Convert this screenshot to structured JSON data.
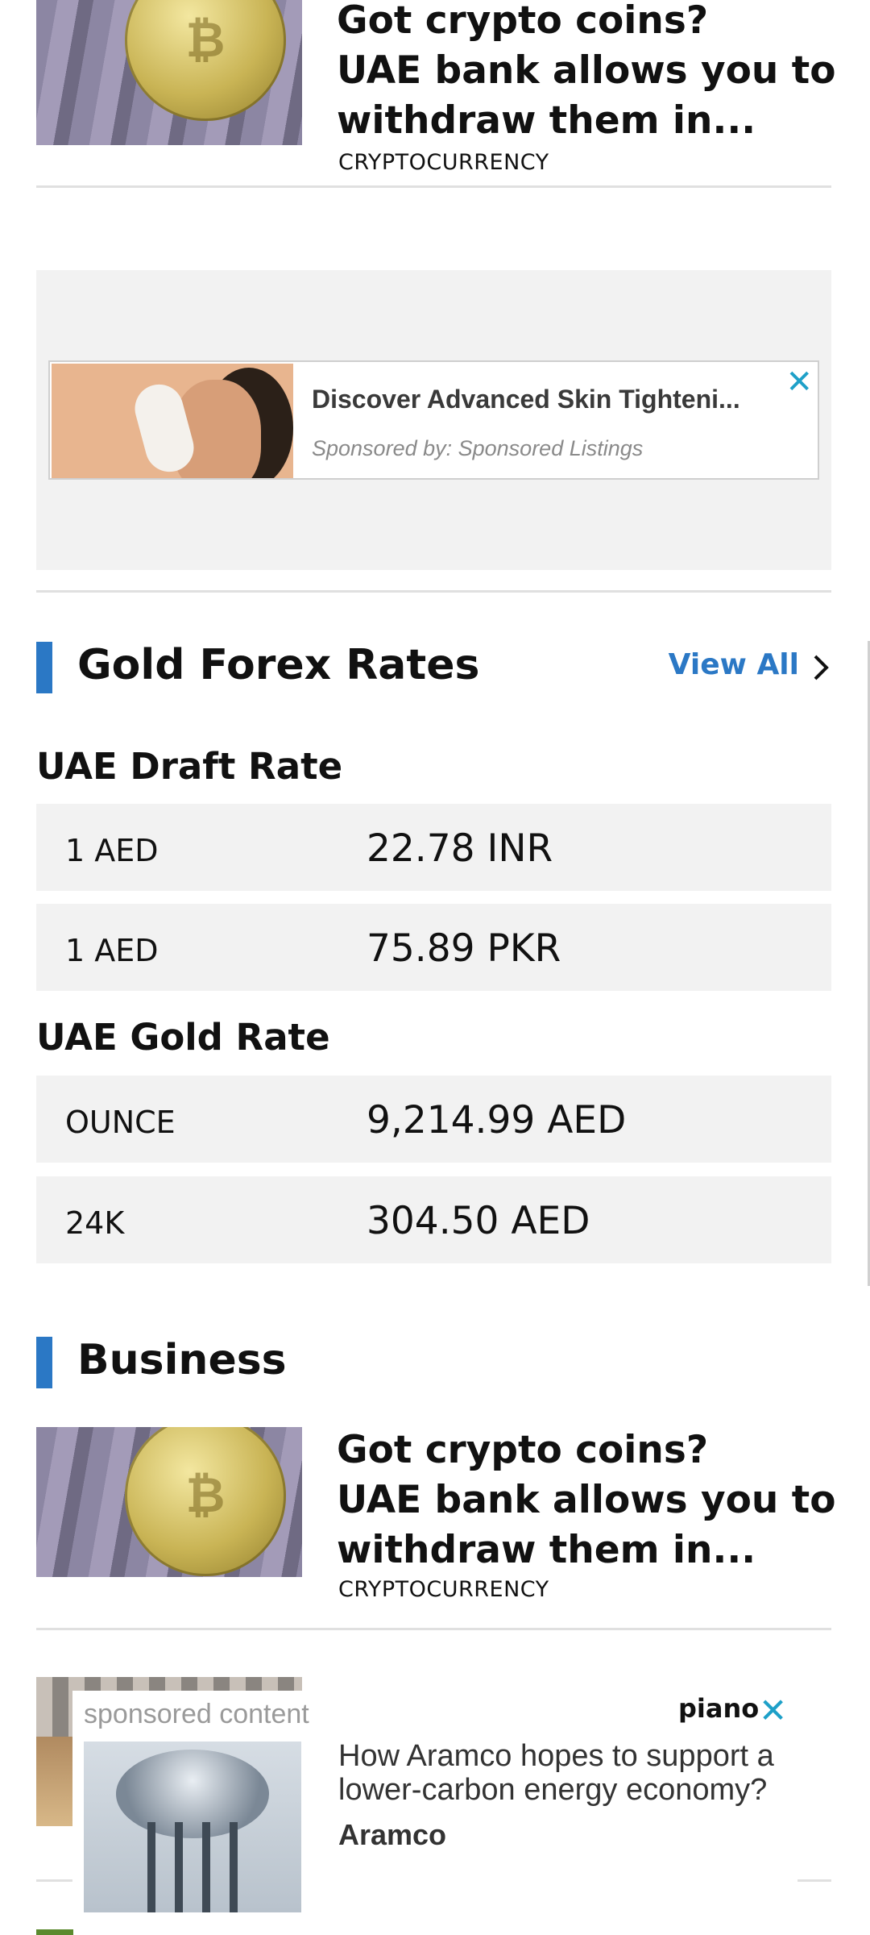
{
  "articles_top": {
    "headline": [
      "Got crypto coins?",
      "UAE bank allows you to",
      "withdraw them in..."
    ],
    "category": "CRYPTOCURRENCY",
    "coin_symbol": "₿"
  },
  "ad": {
    "title": "Discover Advanced Skin Tighteni...",
    "sponsor": "Sponsored by: Sponsored Listings",
    "close_icon": "close-icon"
  },
  "gold_forex": {
    "title": "Gold Forex Rates",
    "view_all": "View All",
    "draft_title": "UAE Draft Rate",
    "draft_rates": [
      {
        "unit": "1 AED",
        "value": "22.78 INR"
      },
      {
        "unit": "1 AED",
        "value": "75.89 PKR"
      }
    ],
    "gold_title": "UAE Gold Rate",
    "gold_rates": [
      {
        "unit": "OUNCE",
        "value": "9,214.99 AED"
      },
      {
        "unit": "24K",
        "value": "304.50 AED"
      }
    ],
    "accent_color": "#2b78c5"
  },
  "business": {
    "title": "Business",
    "article": {
      "headline": [
        "Got crypto coins?",
        "UAE bank allows you to",
        "withdraw them in..."
      ],
      "category": "CRYPTOCURRENCY"
    }
  },
  "sponsored": {
    "label": "sponsored content",
    "logo": "piano",
    "text": "How Aramco hopes to support a lower-carbon energy economy?",
    "brand": "Aramco"
  }
}
